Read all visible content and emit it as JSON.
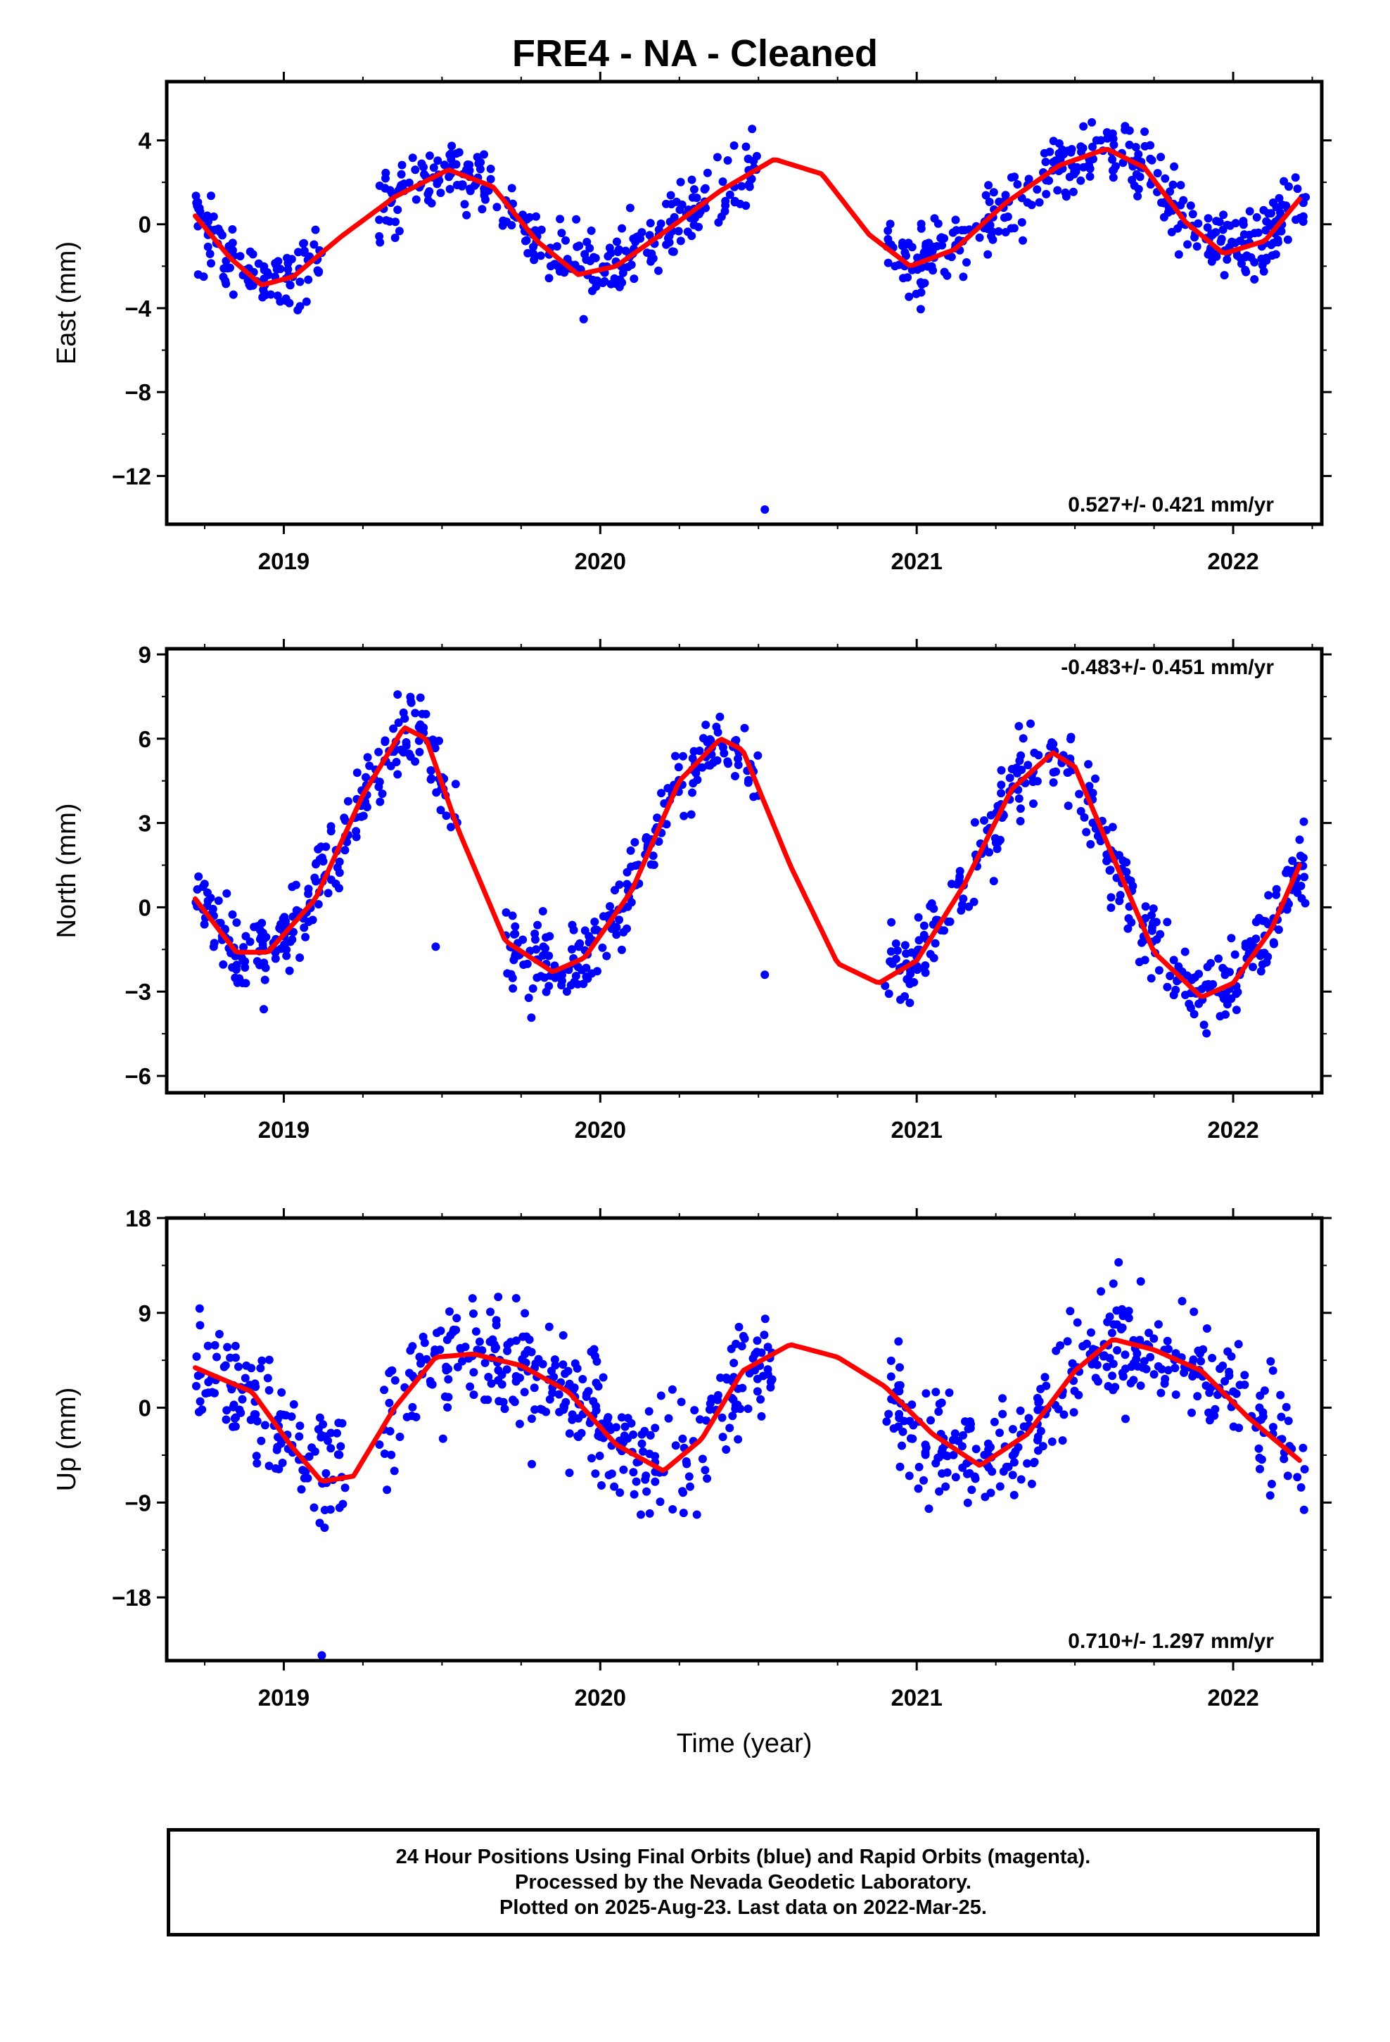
{
  "title": "FRE4  - NA - Cleaned",
  "chart_data": [
    {
      "type": "scatter",
      "panel": "east",
      "ylabel": "East (mm)",
      "ylim": [
        -14.3,
        6.8
      ],
      "yticks": [
        4,
        0,
        -4,
        -8,
        -12
      ],
      "yticklabels": [
        "4",
        "0",
        "−4",
        "−8",
        "−12"
      ],
      "xlim": [
        2018.63,
        2022.28
      ],
      "xticks": [
        2019,
        2020,
        2021,
        2022
      ],
      "xticklabels": [
        "2019",
        "2020",
        "2021",
        "2022"
      ],
      "rate_label": "0.527+/- 0.421 mm/yr",
      "rate_position": "bottom-right",
      "series": [
        {
          "kind": "points",
          "color": "#0000ff",
          "mean": 0.527,
          "amp_annual": 2.8,
          "amp_semi": 0.3,
          "phase_annual": 0.61,
          "noise": 1.15,
          "gaps": [
            [
              2019.12,
              2019.3
            ],
            [
              2020.5,
              2020.9
            ]
          ],
          "outliers": [
            [
              2020.52,
              -13.6
            ]
          ],
          "count": 900,
          "x_range": [
            2018.72,
            2022.23
          ]
        },
        {
          "kind": "fit",
          "color": "#ff0000",
          "x": [
            2018.72,
            2018.83,
            2018.93,
            2019.03,
            2019.18,
            2019.35,
            2019.52,
            2019.66,
            2019.8,
            2019.93,
            2020.05,
            2020.2,
            2020.38,
            2020.55,
            2020.7,
            2020.85,
            2020.98,
            2021.12,
            2021.28,
            2021.45,
            2021.6,
            2021.72,
            2021.85,
            2021.97,
            2022.1,
            2022.21
          ],
          "y": [
            0.4,
            -1.6,
            -2.9,
            -2.5,
            -0.6,
            1.3,
            2.6,
            1.8,
            -0.8,
            -2.4,
            -2.0,
            -0.4,
            1.6,
            3.1,
            2.4,
            -0.5,
            -2.0,
            -1.2,
            1.0,
            2.8,
            3.6,
            2.7,
            0.1,
            -1.4,
            -0.8,
            1.2
          ]
        }
      ]
    },
    {
      "type": "scatter",
      "panel": "north",
      "ylabel": "North (mm)",
      "ylim": [
        -6.6,
        9.2
      ],
      "yticks": [
        9,
        6,
        3,
        0,
        -3,
        -6
      ],
      "yticklabels": [
        "9",
        "6",
        "3",
        "0",
        "−3",
        "−6"
      ],
      "xlim": [
        2018.63,
        2022.28
      ],
      "xticks": [
        2019,
        2020,
        2021,
        2022
      ],
      "xticklabels": [
        "2019",
        "2020",
        "2021",
        "2022"
      ],
      "rate_label": "-0.483+/- 0.451 mm/yr",
      "rate_position": "top-right",
      "series": [
        {
          "kind": "points",
          "color": "#0000ff",
          "noise": 0.95,
          "gaps": [
            [
              2019.55,
              2019.7
            ],
            [
              2020.5,
              2020.9
            ]
          ],
          "outliers": [
            [
              2019.48,
              -1.4
            ],
            [
              2020.52,
              -2.4
            ]
          ],
          "count": 900,
          "x_range": [
            2018.72,
            2022.23
          ]
        },
        {
          "kind": "fit",
          "color": "#ff0000",
          "x": [
            2018.72,
            2018.85,
            2018.95,
            2019.1,
            2019.25,
            2019.38,
            2019.45,
            2019.55,
            2019.7,
            2019.85,
            2019.95,
            2020.1,
            2020.25,
            2020.38,
            2020.45,
            2020.6,
            2020.75,
            2020.88,
            2021.0,
            2021.15,
            2021.3,
            2021.43,
            2021.5,
            2021.62,
            2021.75,
            2021.9,
            2022.0,
            2022.12,
            2022.21
          ],
          "y": [
            0.3,
            -1.6,
            -1.6,
            0.3,
            4.0,
            6.4,
            6.0,
            2.8,
            -1.2,
            -2.3,
            -1.8,
            0.6,
            4.5,
            6.0,
            5.6,
            1.5,
            -2.0,
            -2.7,
            -1.9,
            0.8,
            4.2,
            5.5,
            5.0,
            1.8,
            -1.6,
            -3.2,
            -2.7,
            -0.8,
            1.5
          ]
        }
      ]
    },
    {
      "type": "scatter",
      "panel": "up",
      "ylabel": "Up (mm)",
      "ylim": [
        -24,
        18
      ],
      "yticks": [
        18,
        9,
        0,
        -9,
        -18
      ],
      "yticklabels": [
        "18",
        "9",
        "0",
        "−9",
        "−18"
      ],
      "xlim": [
        2018.63,
        2022.28
      ],
      "xticks": [
        2019,
        2020,
        2021,
        2022
      ],
      "xticklabels": [
        "2019",
        "2020",
        "2021",
        "2022"
      ],
      "xlabel": "Time (year)",
      "rate_label": "0.710+/- 1.297 mm/yr",
      "rate_position": "bottom-right",
      "series": [
        {
          "kind": "points",
          "color": "#0000ff",
          "noise": 3.8,
          "gaps": [
            [
              2019.2,
              2019.3
            ],
            [
              2020.55,
              2020.9
            ]
          ],
          "outliers": [
            [
              2019.12,
              -23.5
            ]
          ],
          "count": 900,
          "x_range": [
            2018.72,
            2022.23
          ]
        },
        {
          "kind": "fit",
          "color": "#ff0000",
          "x": [
            2018.72,
            2018.9,
            2019.02,
            2019.12,
            2019.22,
            2019.35,
            2019.48,
            2019.6,
            2019.75,
            2019.9,
            2020.05,
            2020.2,
            2020.32,
            2020.45,
            2020.6,
            2020.75,
            2020.9,
            2021.05,
            2021.2,
            2021.35,
            2021.5,
            2021.62,
            2021.75,
            2021.9,
            2022.05,
            2022.21
          ],
          "y": [
            3.8,
            1.5,
            -3.5,
            -7.0,
            -6.5,
            0.0,
            4.8,
            5.1,
            4.0,
            1.5,
            -3.5,
            -6.0,
            -3.0,
            3.5,
            6.0,
            4.8,
            2.0,
            -2.5,
            -5.5,
            -2.5,
            3.5,
            6.5,
            5.5,
            3.5,
            -1.0,
            -5.0
          ]
        }
      ]
    }
  ],
  "footer": {
    "line1": "24 Hour Positions Using Final Orbits (blue) and Rapid Orbits (magenta).",
    "line2": "Processed by the Nevada Geodetic Laboratory.",
    "line3": "Plotted on 2025-Aug-23. Last data on 2022-Mar-25."
  }
}
